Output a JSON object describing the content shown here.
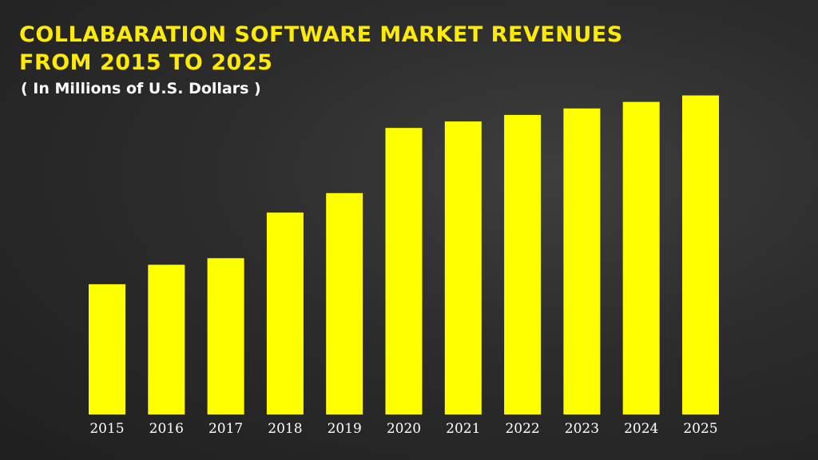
{
  "chart_data": {
    "type": "bar",
    "title": "COLLABARATION SOFTWARE MARKET REVENUES FROM 2015 TO 2025",
    "subtitle": "( In Millions of U.S. Dollars )",
    "xlabel": "",
    "ylabel": "",
    "categories": [
      "2015",
      "2016",
      "2017",
      "2018",
      "2019",
      "2020",
      "2021",
      "2022",
      "2023",
      "2024",
      "2025"
    ],
    "values": [
      2.0,
      2.3,
      2.4,
      3.1,
      3.4,
      4.4,
      4.5,
      4.6,
      4.7,
      4.8,
      4.9
    ],
    "ylim": [
      0,
      5.2
    ],
    "grid": false,
    "legend": "none",
    "colors": {
      "bar": "#ffff00",
      "title": "#ffeb00",
      "subtitle": "#ffffff",
      "tick_label": "#ffffff"
    }
  }
}
